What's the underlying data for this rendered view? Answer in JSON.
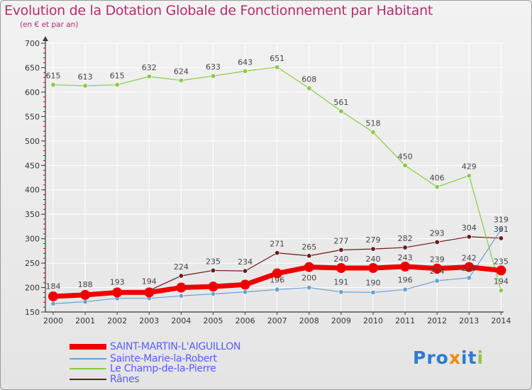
{
  "title": "Evolution de la Dotation Globale de Fonctionnement par Habitant",
  "subtitle": "(en € et par an)",
  "logo_text": "Proxiti",
  "colors": {
    "title": "#b0306b",
    "axis": "#3a3a3a",
    "grid": "#ffffff",
    "tick_red": "#cc0000",
    "legend_text": "#5a5aff"
  },
  "chart_data": {
    "type": "line",
    "x": [
      "2000",
      "2001",
      "2002",
      "2003",
      "2004",
      "2005",
      "2006",
      "2007",
      "2008",
      "2009",
      "2010",
      "2011",
      "2012",
      "2013",
      "2014"
    ],
    "ylim": [
      150,
      700
    ],
    "yticks": [
      150,
      200,
      250,
      300,
      350,
      400,
      450,
      500,
      550,
      600,
      650,
      700
    ],
    "grid": true,
    "legend_placement": "bottom-left",
    "series": [
      {
        "name": "SAINT-MARTIN-L'AIGUILLON",
        "color": "#ee0000",
        "width": 7,
        "values": [
          182,
          185,
          190,
          190,
          200,
          202,
          206,
          229,
          242,
          240,
          240,
          243,
          239,
          242,
          235
        ],
        "labels": [
          null,
          null,
          null,
          null,
          null,
          null,
          null,
          null,
          null,
          "240",
          "240",
          "243",
          "239",
          "242",
          "235"
        ]
      },
      {
        "name": "Sainte-Marie-la-Robert",
        "color": "#6a9fd4",
        "width": 1.2,
        "values": [
          167,
          171,
          178,
          178,
          183,
          187,
          191,
          196,
          200,
          191,
          190,
          196,
          214,
          220,
          319
        ],
        "labels": [
          null,
          null,
          null,
          null,
          null,
          null,
          null,
          "196",
          "200",
          "191",
          "190",
          "196",
          "214",
          "220",
          "319"
        ]
      },
      {
        "name": "Le Champ-de-la-Pierre",
        "color": "#88cc44",
        "width": 1.2,
        "values": [
          615,
          613,
          615,
          632,
          624,
          633,
          643,
          651,
          608,
          561,
          518,
          450,
          406,
          429,
          194
        ],
        "labels": [
          "615",
          "613",
          "615",
          "632",
          "624",
          "633",
          "643",
          "651",
          "608",
          "561",
          "518",
          "450",
          "406",
          "429",
          "194"
        ]
      },
      {
        "name": "Rânes",
        "color": "#6b1a1a",
        "width": 1.2,
        "values": [
          184,
          188,
          193,
          194,
          224,
          235,
          234,
          271,
          265,
          277,
          279,
          282,
          293,
          304,
          301
        ],
        "labels": [
          "184",
          "188",
          "193",
          "194",
          "224",
          "235",
          "234",
          "271",
          "265",
          "277",
          "279",
          "282",
          "293",
          "304",
          "301"
        ]
      }
    ]
  }
}
